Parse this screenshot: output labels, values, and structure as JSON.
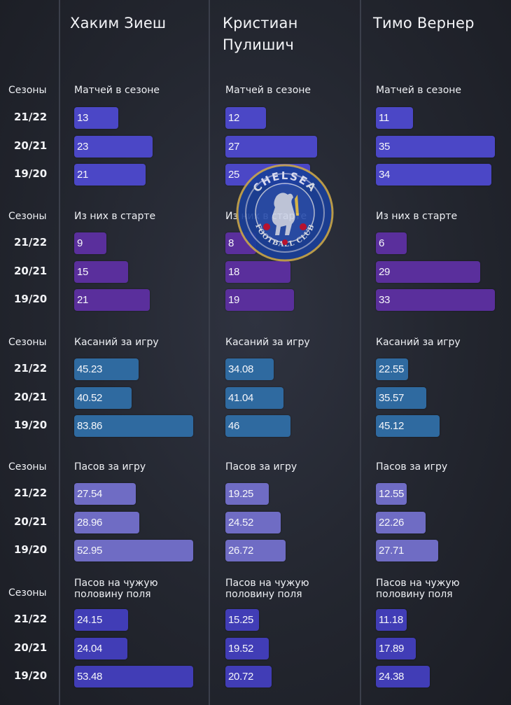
{
  "players": [
    "Хаким Зиеш",
    "Кристиан Пулишич",
    "Тимо Вернер"
  ],
  "seasons_label": "Сезоны",
  "seasons": [
    "21/22",
    "20/21",
    "19/20"
  ],
  "logo_text": {
    "top": "CHELSEA",
    "bottom": "FOOTBALL CLUB"
  },
  "colors": {
    "matches": "#4b47c6",
    "starts": "#5a2f9c",
    "touches": "#2f6aa0",
    "passes": "#6f6cc4",
    "passes_half": "#413db6"
  },
  "chart_data": [
    {
      "type": "bar",
      "metric": "Матчей в сезоне",
      "categories": [
        "21/22",
        "20/21",
        "19/20"
      ],
      "series": [
        {
          "name": "Хаким Зиеш",
          "values": [
            13,
            23,
            21
          ]
        },
        {
          "name": "Кристиан Пулишич",
          "values": [
            12,
            27,
            25
          ]
        },
        {
          "name": "Тимо Вернер",
          "values": [
            11,
            35,
            34
          ]
        }
      ]
    },
    {
      "type": "bar",
      "metric": "Из них в старте",
      "categories": [
        "21/22",
        "20/21",
        "19/20"
      ],
      "series": [
        {
          "name": "Хаким Зиеш",
          "values": [
            9,
            15,
            21
          ]
        },
        {
          "name": "Кристиан Пулишич",
          "values": [
            8,
            18,
            19
          ]
        },
        {
          "name": "Тимо Вернер",
          "values": [
            6,
            29,
            33
          ]
        }
      ]
    },
    {
      "type": "bar",
      "metric": "Касаний за игру",
      "categories": [
        "21/22",
        "20/21",
        "19/20"
      ],
      "series": [
        {
          "name": "Хаким Зиеш",
          "values": [
            45.23,
            40.52,
            83.86
          ]
        },
        {
          "name": "Кристиан Пулишич",
          "values": [
            34.08,
            41.04,
            46
          ]
        },
        {
          "name": "Тимо Вернер",
          "values": [
            22.55,
            35.57,
            45.12
          ]
        }
      ]
    },
    {
      "type": "bar",
      "metric": "Пасов за игру",
      "categories": [
        "21/22",
        "20/21",
        "19/20"
      ],
      "series": [
        {
          "name": "Хаким Зиеш",
          "values": [
            27.54,
            28.96,
            52.95
          ]
        },
        {
          "name": "Кристиан Пулишич",
          "values": [
            19.25,
            24.52,
            26.72
          ]
        },
        {
          "name": "Тимо Вернер",
          "values": [
            12.55,
            22.26,
            27.71
          ]
        }
      ]
    },
    {
      "type": "bar",
      "metric": "Пасов на чужую половину поля",
      "metric_lines": [
        "Пасов на чужую",
        "половину поля"
      ],
      "categories": [
        "21/22",
        "20/21",
        "19/20"
      ],
      "series": [
        {
          "name": "Хаким Зиеш",
          "values": [
            24.15,
            24.04,
            53.48
          ]
        },
        {
          "name": "Кристиан Пулишич",
          "values": [
            15.25,
            19.52,
            20.72
          ]
        },
        {
          "name": "Тимо Вернер",
          "values": [
            11.18,
            17.89,
            24.38
          ]
        }
      ]
    }
  ]
}
